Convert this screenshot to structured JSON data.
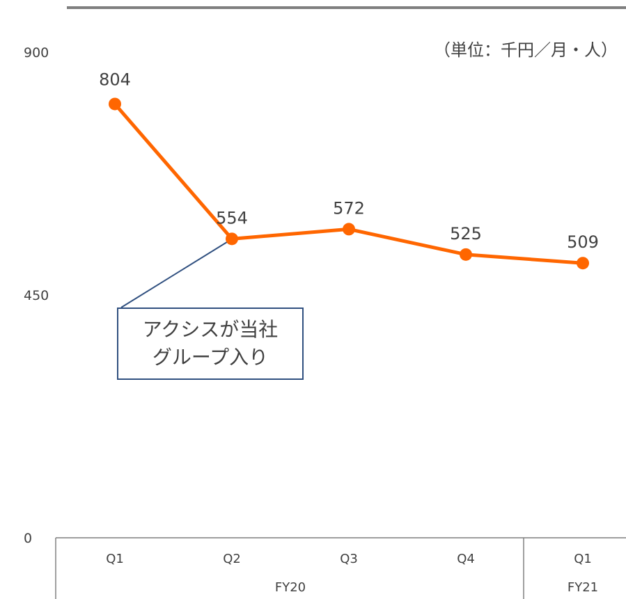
{
  "unit_label": "（単位：千円／月・人）",
  "callout": {
    "line1": "アクシスが当社",
    "line2": "グループ入り"
  },
  "colors": {
    "line": "#ff6600",
    "axis": "#404040",
    "callout_border": "#2f4f7f",
    "top_bar": "#7f7f7f"
  },
  "chart_data": {
    "type": "line",
    "categories": [
      "Q1",
      "Q2",
      "Q3",
      "Q4",
      "Q1"
    ],
    "groups": [
      {
        "label": "FY20",
        "span": 4
      },
      {
        "label": "FY21",
        "span": 1
      }
    ],
    "series": [
      {
        "values": [
          804,
          554,
          572,
          525,
          509
        ]
      }
    ],
    "data_labels": [
      "804",
      "554",
      "572",
      "525",
      "509"
    ],
    "yticks": [
      "0",
      "450",
      "900"
    ],
    "ylim": [
      0,
      900
    ],
    "grid": false,
    "title": "",
    "xlabel": "",
    "ylabel": ""
  }
}
